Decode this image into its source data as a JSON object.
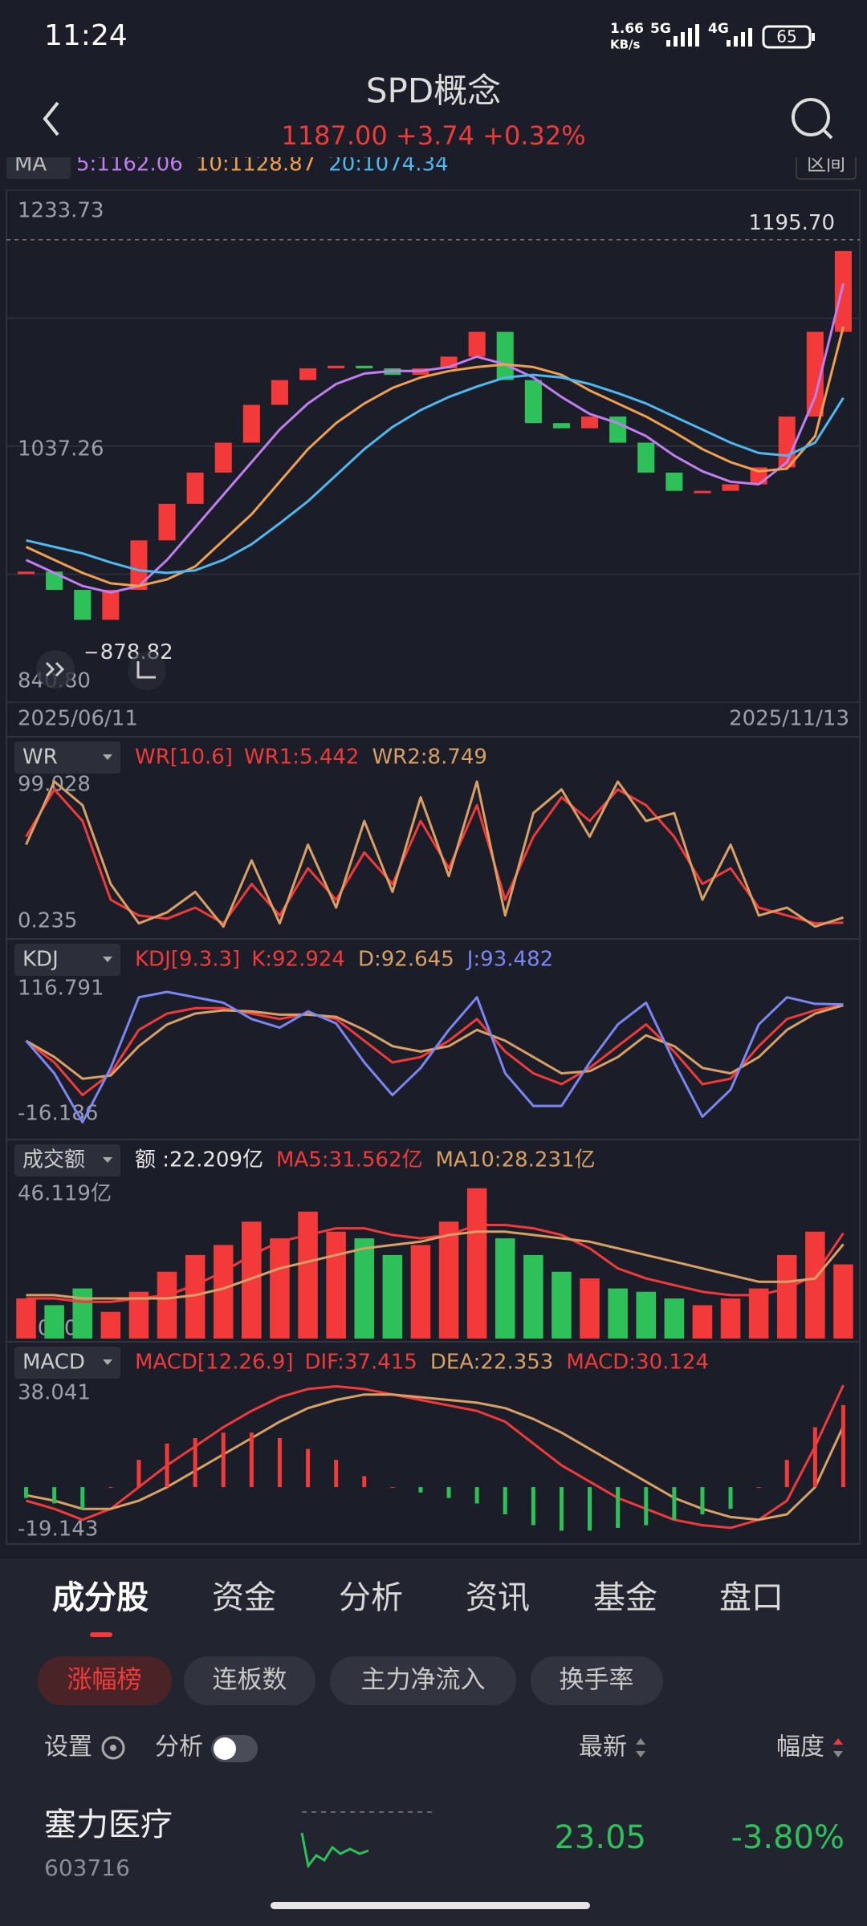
{
  "status_bar": {
    "time": "11:24",
    "net_speed": "1.66",
    "net_unit": "KB/s",
    "signal_a": "5G",
    "signal_b": "4G",
    "battery": "65"
  },
  "header": {
    "title": "SPD概念",
    "quote": "1187.00 +3.74 +0.32%"
  },
  "chart_data": [
    {
      "type": "candlestick",
      "legend_label": "MA",
      "button": "区间",
      "x": [
        "2025/06/11",
        null,
        null,
        null,
        null,
        null,
        null,
        null,
        null,
        null,
        null,
        null,
        null,
        null,
        null,
        null,
        null,
        null,
        null,
        null,
        null,
        null,
        null,
        null,
        null,
        null,
        null,
        null,
        null,
        "2025/11/13"
      ],
      "values": [
        941,
        927,
        904,
        927,
        965,
        993,
        1017,
        1040,
        1069,
        1088,
        1097,
        1099,
        1097,
        1092,
        1097,
        1106,
        1125,
        1088,
        1055,
        1051,
        1060,
        1040,
        1017,
        1003,
        1003,
        1008,
        1021,
        1060,
        1125,
        1187
      ],
      "up_color": "#f23a3a",
      "down_color": "#2ec15a",
      "series": [
        {
          "name": "5:1162.06",
          "color": "#c17ef0",
          "values": [
            950,
            940,
            930,
            925,
            930,
            950,
            975,
            1000,
            1025,
            1050,
            1070,
            1085,
            1093,
            1095,
            1095,
            1098,
            1106,
            1100,
            1090,
            1075,
            1062,
            1055,
            1045,
            1030,
            1018,
            1010,
            1008,
            1025,
            1075,
            1162.06
          ]
        },
        {
          "name": "10:1128.87",
          "color": "#f0a050",
          "values": [
            960,
            950,
            940,
            932,
            930,
            935,
            945,
            965,
            985,
            1010,
            1035,
            1055,
            1070,
            1082,
            1090,
            1095,
            1098,
            1100,
            1098,
            1092,
            1080,
            1070,
            1060,
            1048,
            1035,
            1025,
            1018,
            1020,
            1045,
            1128.87
          ]
        },
        {
          "name": "20:1074.34",
          "color": "#4fb8f0",
          "values": [
            965,
            960,
            955,
            948,
            942,
            940,
            942,
            950,
            962,
            978,
            995,
            1015,
            1035,
            1052,
            1065,
            1075,
            1083,
            1090,
            1092,
            1090,
            1085,
            1078,
            1070,
            1060,
            1050,
            1040,
            1032,
            1030,
            1040,
            1074.34
          ]
        }
      ],
      "ylim": [
        840.8,
        1233.73
      ],
      "yticks": [
        {
          "value": 840.8,
          "label": "840.80"
        },
        1037.26,
        1233.73
      ],
      "grid": true,
      "high": {
        "value": 1195.7,
        "label": "1195.70"
      },
      "low": 878.82
    },
    {
      "type": "line",
      "indicator": "WR",
      "title": "WR[10.6]",
      "series": [
        {
          "name": "WR1:5.442",
          "type": "line",
          "color": "#f23a3a",
          "values": [
            60,
            90,
            70,
            20,
            10,
            8,
            15,
            5,
            30,
            10,
            40,
            20,
            50,
            30,
            70,
            40,
            80,
            20,
            60,
            85,
            70,
            90,
            80,
            60,
            30,
            40,
            15,
            10,
            5,
            5.442
          ]
        },
        {
          "name": "WR2:8.749",
          "type": "line",
          "color": "#d9a066",
          "values": [
            55,
            95,
            80,
            30,
            5,
            12,
            25,
            3,
            45,
            5,
            55,
            15,
            70,
            25,
            85,
            35,
            95,
            10,
            75,
            90,
            60,
            95,
            70,
            75,
            20,
            55,
            10,
            15,
            3,
            8.749
          ]
        }
      ],
      "ylim": [
        0.235,
        99.028
      ],
      "yticks": [
        0.235,
        99.028
      ],
      "grid": false
    },
    {
      "type": "line",
      "indicator": "KDJ",
      "title": "KDJ[9.3.3]",
      "series": [
        {
          "name": "K:92.924",
          "type": "line",
          "color": "#f23a3a",
          "values": [
            60,
            40,
            10,
            30,
            70,
            85,
            90,
            90,
            85,
            80,
            85,
            80,
            60,
            40,
            45,
            60,
            80,
            50,
            30,
            20,
            35,
            55,
            75,
            50,
            20,
            25,
            55,
            80,
            88,
            92.924
          ]
        },
        {
          "name": "D:92.645",
          "type": "line",
          "color": "#d9a066",
          "values": [
            60,
            45,
            25,
            28,
            55,
            75,
            85,
            88,
            87,
            84,
            84,
            82,
            70,
            55,
            50,
            55,
            70,
            60,
            45,
            30,
            32,
            45,
            65,
            55,
            35,
            30,
            45,
            70,
            85,
            92.645
          ]
        },
        {
          "name": "J:93.482",
          "type": "line",
          "color": "#7b86f2",
          "values": [
            60,
            30,
            -15,
            35,
            100,
            105,
            100,
            95,
            80,
            72,
            87,
            76,
            40,
            10,
            35,
            70,
            100,
            30,
            0,
            0,
            40,
            75,
            95,
            40,
            -10,
            15,
            75,
            100,
            94,
            93.482
          ]
        }
      ],
      "ylim": [
        -16.186,
        116.791
      ],
      "yticks": [
        -16.186,
        116.791
      ],
      "grid": false
    },
    {
      "type": "bar",
      "indicator": "成交额",
      "series": [
        {
          "name": "额 :22.209亿",
          "type": "bar",
          "color": "#e6e6e6",
          "values": [
            12,
            10,
            15,
            8,
            14,
            20,
            25,
            28,
            35,
            30,
            38,
            32,
            30,
            25,
            28,
            35,
            45,
            30,
            25,
            20,
            18,
            15,
            14,
            12,
            10,
            12,
            15,
            25,
            32,
            22.209
          ]
        },
        {
          "name": "MA5:31.562亿",
          "type": "line",
          "color": "#f23a3a",
          "values": [
            12,
            12,
            11,
            11,
            12,
            13,
            16,
            20,
            25,
            29,
            31,
            33,
            33,
            31,
            30,
            31,
            34,
            34,
            33,
            31,
            27,
            21,
            18,
            16,
            14,
            13,
            13,
            15,
            19,
            31.562
          ]
        },
        {
          "name": "MA10:28.231亿",
          "type": "line",
          "color": "#d9a066",
          "values": [
            13,
            13,
            12,
            12,
            12,
            12,
            13,
            15,
            18,
            21,
            23,
            25,
            27,
            28,
            29,
            31,
            32,
            32,
            31,
            30,
            29,
            27,
            25,
            23,
            21,
            19,
            17,
            17,
            18,
            28.231
          ]
        }
      ],
      "ylim": [
        0,
        46.119
      ],
      "yticks": [
        {
          "value": 0,
          "label": "0.000"
        },
        {
          "value": 46.119,
          "label": "46.119亿"
        }
      ],
      "grid": false
    },
    {
      "type": "bar",
      "indicator": "MACD",
      "title": "MACD[12.26.9]",
      "series": [
        {
          "name": "DIF:37.415",
          "type": "line",
          "color": "#f23a3a",
          "values": [
            -5,
            -8,
            -12,
            -8,
            0,
            8,
            15,
            22,
            28,
            33,
            36,
            37,
            36,
            34,
            32,
            30,
            28,
            24,
            16,
            8,
            2,
            -4,
            -8,
            -12,
            -14,
            -15,
            -12,
            -5,
            15,
            37.415
          ]
        },
        {
          "name": "DEA:22.353",
          "type": "line",
          "color": "#d9a066",
          "values": [
            -3,
            -5,
            -8,
            -8,
            -5,
            0,
            6,
            12,
            18,
            24,
            29,
            32,
            34,
            34,
            33,
            32,
            31,
            29,
            25,
            20,
            14,
            8,
            2,
            -4,
            -8,
            -11,
            -12,
            -10,
            0,
            22.353
          ]
        },
        {
          "name": "MACD:30.124",
          "type": "bar",
          "color": "#f23a3a",
          "values": [
            -4,
            -6,
            -8,
            0,
            10,
            16,
            18,
            20,
            20,
            18,
            14,
            10,
            4,
            0,
            -2,
            -4,
            -6,
            -10,
            -14,
            -16,
            -16,
            -15,
            -14,
            -12,
            -10,
            -8,
            0,
            10,
            22,
            30.124
          ]
        }
      ],
      "ylim": [
        -19.143,
        38.041
      ],
      "yticks": [
        -19.143,
        38.041
      ],
      "grid": false
    }
  ],
  "tabs": [
    "成分股",
    "资金",
    "分析",
    "资讯",
    "基金",
    "盘口"
  ],
  "filters": [
    "涨幅榜",
    "连板数",
    "主力净流入",
    "换手率"
  ],
  "list_header": {
    "settings": "设置",
    "analysis": "分析",
    "latest": "最新",
    "change": "幅度"
  },
  "rows": [
    {
      "name": "塞力医疗",
      "code": "603716",
      "price": "23.05",
      "change": "-3.80%"
    }
  ]
}
